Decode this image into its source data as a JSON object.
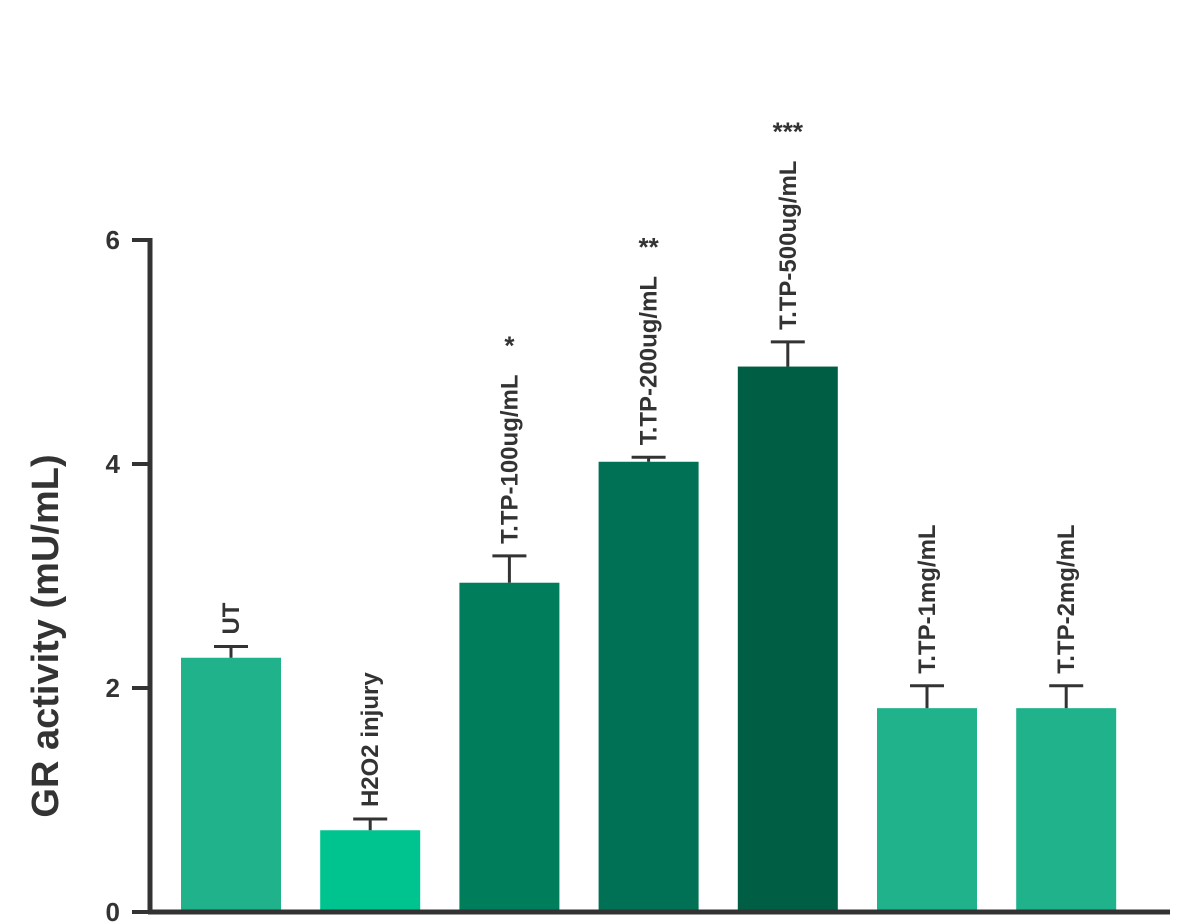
{
  "chart_data": {
    "type": "bar",
    "title": "",
    "xlabel": "",
    "ylabel": "GR activity (mU/mL)",
    "ylim": [
      0,
      6
    ],
    "yticks": [
      0,
      2,
      4,
      6
    ],
    "categories": [
      "UT",
      "H2O2 injury",
      "T.TP-100ug/mL",
      "T.TP-200ug/mL",
      "T.TP-500ug/mL",
      "T.TP-1mg/mL",
      "T.TP-2mg/mL"
    ],
    "values": [
      2.27,
      0.73,
      2.94,
      4.02,
      4.87,
      1.82,
      1.82
    ],
    "errors": [
      0.1,
      0.1,
      0.24,
      0.04,
      0.22,
      0.2,
      0.2
    ],
    "significance": [
      "",
      "",
      "*",
      "**",
      "***",
      "",
      ""
    ],
    "colors": [
      "#20B28A",
      "#00C48F",
      "#007E5B",
      "#007154",
      "#005E45",
      "#20B28A",
      "#20B28A"
    ],
    "grid": false,
    "legend": "none"
  }
}
